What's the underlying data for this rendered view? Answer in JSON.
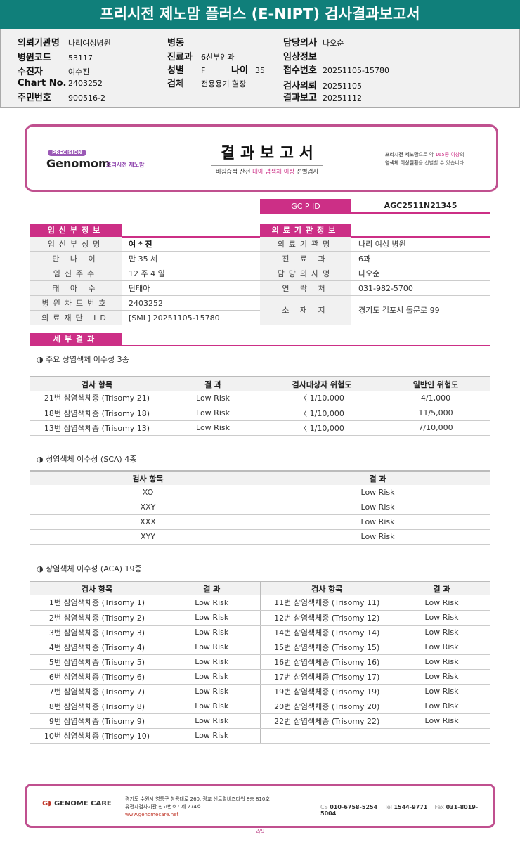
{
  "title": "프리시전 제노맘 플러스 (E-NIPT) 검사결과보고서",
  "info": {
    "col1": [
      [
        "의뢰기관명",
        "나리여성병원"
      ],
      [
        "병원코드",
        "53117"
      ],
      [
        "수진자",
        "여수진"
      ],
      [
        "Chart No.",
        "2403252"
      ],
      [
        "주민번호",
        "900516-2"
      ]
    ],
    "col2": [
      [
        "병동",
        ""
      ],
      [
        "진료과",
        "6산부인과"
      ],
      [
        "성별",
        "F"
      ],
      [
        "검체",
        "전용용기 혈장"
      ]
    ],
    "age_label": "나이",
    "age": "35",
    "col3": [
      [
        "담당의사",
        "나오순"
      ],
      [
        "임상정보",
        ""
      ],
      [
        "접수번호",
        "20251105-15780"
      ],
      [
        "검사의뢰",
        "20251105"
      ],
      [
        "결과보고",
        "20251112"
      ]
    ]
  },
  "header": {
    "precision": "PRECISION",
    "brand": "Genomom",
    "brand_kr": "프리시전 제노맘",
    "title": "결 과 보 고 서",
    "subtitle_a": "비침습적 산전 ",
    "subtitle_b": "태아 염색체 이상",
    "subtitle_c": " 선별검사",
    "right_a": "프리시전 제노맘",
    "right_b": "으로 약 ",
    "right_c": "165종 이상",
    "right_d": "의",
    "right_e": "염색체 이상질환",
    "right_f": "을 선별할 수 있습니다"
  },
  "gcpid": {
    "label": "GC P ID",
    "value": "AGC2511N21345"
  },
  "patient": {
    "title": "임신부정보",
    "rows": [
      [
        "임신부성명",
        "여 * 진"
      ],
      [
        "만 나 이",
        "만 35 세"
      ],
      [
        "임신주수",
        "12 주 4 일"
      ],
      [
        "태 아 수",
        "단태아"
      ],
      [
        "병원차트번호",
        "2403252"
      ],
      [
        "의료재단 ID",
        "[SML] 20251105-15780"
      ]
    ]
  },
  "hospital": {
    "title": "의료기관정보",
    "rows": [
      [
        "의료기관명",
        "나리 여성 병원"
      ],
      [
        "진 료 과",
        "6과"
      ],
      [
        "담당의사명",
        "나오순"
      ],
      [
        "연 락 처",
        "031-982-5700"
      ],
      [
        "소 재 지",
        "경기도 김포시 돌문로 99"
      ]
    ]
  },
  "detail_title": "세부결과",
  "major": {
    "title": "◑ 주요 상염색체 이수성 3종",
    "headers": [
      "검사 항목",
      "결 과",
      "검사대상자 위험도",
      "일반인 위험도"
    ],
    "rows": [
      [
        "21번 삼염색체증 (Trisomy 21)",
        "Low Risk",
        "〈 1/10,000",
        "4/1,000"
      ],
      [
        "18번 삼염색체증 (Trisomy 18)",
        "Low Risk",
        "〈 1/10,000",
        "11/5,000"
      ],
      [
        "13번 삼염색체증 (Trisomy 13)",
        "Low Risk",
        "〈 1/10,000",
        "7/10,000"
      ]
    ]
  },
  "sca": {
    "title": "◑ 성염색체 이수성 (SCA) 4종",
    "headers": [
      "검사 항목",
      "결 과"
    ],
    "rows": [
      [
        "XO",
        "Low Risk"
      ],
      [
        "XXY",
        "Low Risk"
      ],
      [
        "XXX",
        "Low Risk"
      ],
      [
        "XYY",
        "Low Risk"
      ]
    ]
  },
  "aca": {
    "title": "◑ 상염색체 이수성 (ACA) 19종",
    "headers": [
      "검사 항목",
      "결 과",
      "검사 항목",
      "결 과"
    ],
    "rows": [
      [
        "1번 삼염색체증 (Trisomy 1)",
        "Low Risk",
        "11번 삼염색체증 (Trisomy 11)",
        "Low Risk"
      ],
      [
        "2번 삼염색체증 (Trisomy 2)",
        "Low Risk",
        "12번 삼염색체증 (Trisomy 12)",
        "Low Risk"
      ],
      [
        "3번 삼염색체증 (Trisomy 3)",
        "Low Risk",
        "14번 삼염색체증 (Trisomy 14)",
        "Low Risk"
      ],
      [
        "4번 삼염색체증 (Trisomy 4)",
        "Low Risk",
        "15번 삼염색체증 (Trisomy 15)",
        "Low Risk"
      ],
      [
        "5번 삼염색체증 (Trisomy 5)",
        "Low Risk",
        "16번 삼염색체증 (Trisomy 16)",
        "Low Risk"
      ],
      [
        "6번 삼염색체증 (Trisomy 6)",
        "Low Risk",
        "17번 삼염색체증 (Trisomy 17)",
        "Low Risk"
      ],
      [
        "7번 삼염색체증 (Trisomy 7)",
        "Low Risk",
        "19번 삼염색체증 (Trisomy 19)",
        "Low Risk"
      ],
      [
        "8번 삼염색체증 (Trisomy 8)",
        "Low Risk",
        "20번 삼염색체증 (Trisomy 20)",
        "Low Risk"
      ],
      [
        "9번 삼염색체증 (Trisomy 9)",
        "Low Risk",
        "22번 삼염색체증 (Trisomy 22)",
        "Low Risk"
      ],
      [
        "10번 삼염색체증 (Trisomy 10)",
        "Low Risk",
        "",
        ""
      ]
    ]
  },
  "footer": {
    "logo": "GENOME CARE",
    "addr": "경기도 수원시 영통구 창룡대로 260, 광교 센트럴비즈타워 8층 810호",
    "reg": "유전자검사기관 신고번호 : 제 274호",
    "web": "www.genomecare.net",
    "cs_label": "CS",
    "cs": "010-6758-5254",
    "tel_label": "Tel",
    "tel": "1544-9771",
    "fax_label": "Fax",
    "fax": "031-8019-5004"
  },
  "page": "2/9",
  "colors": {
    "teal": "#107f7a",
    "pink": "#cc2f86",
    "border": "#c0508f"
  }
}
